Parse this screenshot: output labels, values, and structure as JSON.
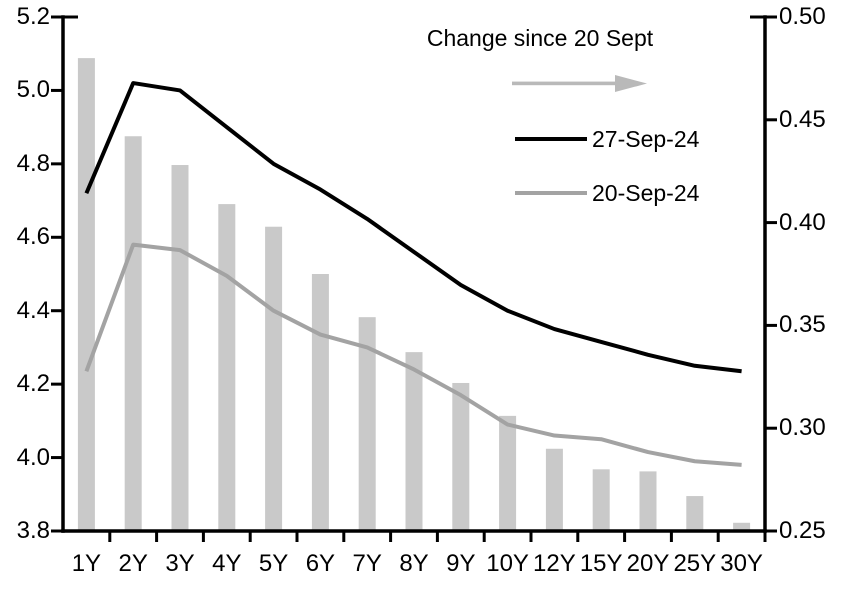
{
  "chart_data": {
    "type": "combo-bar-line",
    "title": "",
    "categories": [
      "1Y",
      "2Y",
      "3Y",
      "4Y",
      "5Y",
      "6Y",
      "7Y",
      "8Y",
      "9Y",
      "10Y",
      "12Y",
      "15Y",
      "20Y",
      "25Y",
      "30Y"
    ],
    "series": [
      {
        "name": "Change since 20 Sept",
        "type": "bar",
        "axis": "right",
        "values": [
          0.48,
          0.442,
          0.428,
          0.409,
          0.398,
          0.375,
          0.354,
          0.337,
          0.322,
          0.306,
          0.29,
          0.28,
          0.279,
          0.267,
          0.254
        ]
      },
      {
        "name": "27-Sep-24",
        "type": "line",
        "axis": "left",
        "values": [
          4.72,
          5.02,
          5.0,
          4.9,
          4.8,
          4.73,
          4.65,
          4.56,
          4.47,
          4.4,
          4.35,
          4.315,
          4.28,
          4.25,
          4.235
        ]
      },
      {
        "name": "20-Sep-24",
        "type": "line",
        "axis": "left",
        "values": [
          4.235,
          4.58,
          4.565,
          4.495,
          4.4,
          4.335,
          4.3,
          4.24,
          4.17,
          4.09,
          4.06,
          4.05,
          4.015,
          3.99,
          3.98
        ]
      }
    ],
    "left_axis": {
      "min": 3.8,
      "max": 5.2,
      "step": 0.2,
      "tick_labels": [
        "3.8",
        "4.0",
        "4.2",
        "4.4",
        "4.6",
        "4.8",
        "5.0",
        "5.2"
      ]
    },
    "right_axis": {
      "min": 0.25,
      "max": 0.5,
      "step": 0.05,
      "tick_labels": [
        "0.25",
        "0.30",
        "0.35",
        "0.40",
        "0.45",
        "0.50"
      ]
    },
    "legend": {
      "annotation": "Change since 20 Sept",
      "arrow_icon": "right-arrow",
      "items": [
        {
          "label": "27-Sep-24"
        },
        {
          "label": "20-Sep-24"
        }
      ]
    },
    "colors": {
      "bar": "#c9c9c9",
      "line_27sep": "#000000",
      "line_20sep": "#a3a3a3",
      "arrow": "#b9b9b9",
      "axis": "#000000"
    },
    "grid": false,
    "legend_position": "top-right"
  }
}
